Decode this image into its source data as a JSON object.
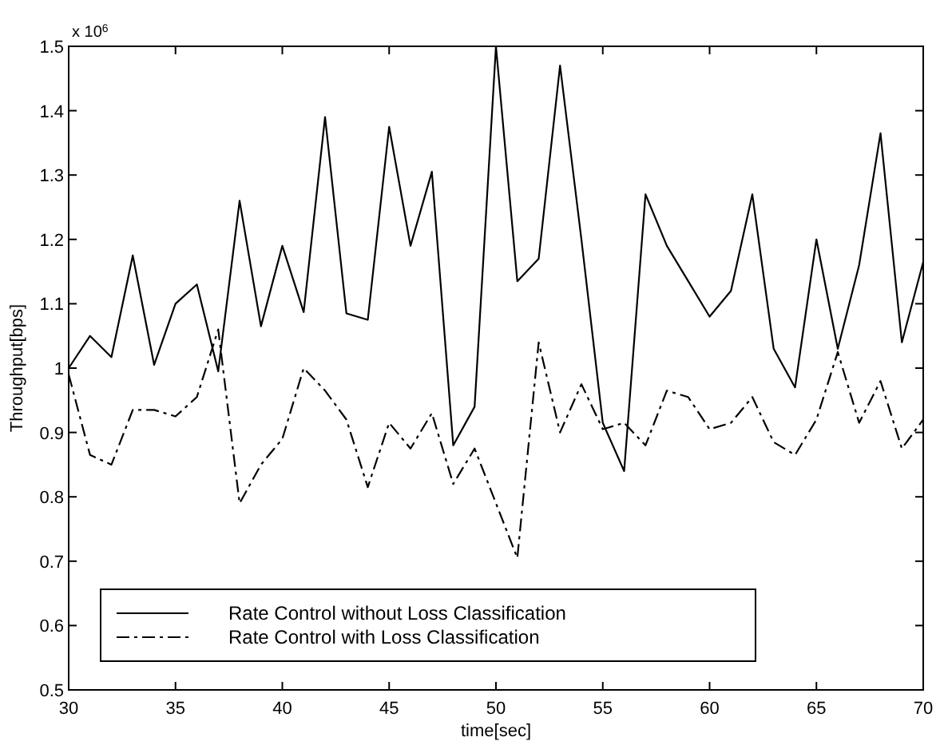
{
  "chart_data": {
    "type": "line",
    "xlabel": "time[sec]",
    "ylabel": "Throughput[bps]",
    "annotations": [
      "x 10$^{6}$"
    ],
    "x": [
      30,
      31,
      32,
      33,
      34,
      35,
      36,
      37,
      38,
      39,
      40,
      41,
      42,
      43,
      44,
      45,
      46,
      47,
      48,
      49,
      50,
      51,
      52,
      53,
      54,
      55,
      56,
      57,
      58,
      59,
      60,
      61,
      62,
      63,
      64,
      65,
      66,
      67,
      68,
      69,
      70
    ],
    "series": [
      {
        "name": "Rate Control without Loss Classification",
        "color": "#000000",
        "line_style": "solid",
        "values": [
          1.0,
          1.05,
          1.017,
          1.175,
          1.005,
          1.1,
          1.13,
          0.995,
          1.26,
          1.065,
          1.19,
          1.087,
          1.39,
          1.085,
          1.075,
          1.375,
          1.19,
          1.305,
          0.88,
          0.94,
          1.5,
          1.135,
          1.17,
          1.47,
          1.2,
          0.915,
          0.84,
          1.27,
          1.19,
          1.135,
          1.08,
          1.12,
          1.27,
          1.03,
          0.97,
          1.2,
          1.03,
          1.16,
          1.365,
          1.04,
          1.165
        ]
      },
      {
        "name": "Rate Control with Loss Classification",
        "color": "#000000",
        "line_style": "dashed",
        "values": [
          0.99,
          0.865,
          0.85,
          0.935,
          0.935,
          0.925,
          0.955,
          1.06,
          0.79,
          0.85,
          0.89,
          1.0,
          0.965,
          0.92,
          0.815,
          0.915,
          0.875,
          0.93,
          0.82,
          0.875,
          0.79,
          0.705,
          1.04,
          0.9,
          0.975,
          0.905,
          0.915,
          0.88,
          0.965,
          0.955,
          0.905,
          0.915,
          0.955,
          0.885,
          0.865,
          0.92,
          1.025,
          0.915,
          0.98,
          0.875,
          0.92
        ]
      }
    ],
    "xlim": [
      30,
      70
    ],
    "xticks": [
      30,
      35,
      40,
      45,
      50,
      55,
      60,
      65,
      70
    ],
    "ylim": [
      0.5,
      1.5
    ],
    "yticks": [
      0.5,
      0.6,
      0.7,
      0.8,
      0.9,
      1,
      1.1,
      1.2,
      1.3,
      1.4,
      1.5
    ],
    "grid": false,
    "legend": "bottom left"
  }
}
